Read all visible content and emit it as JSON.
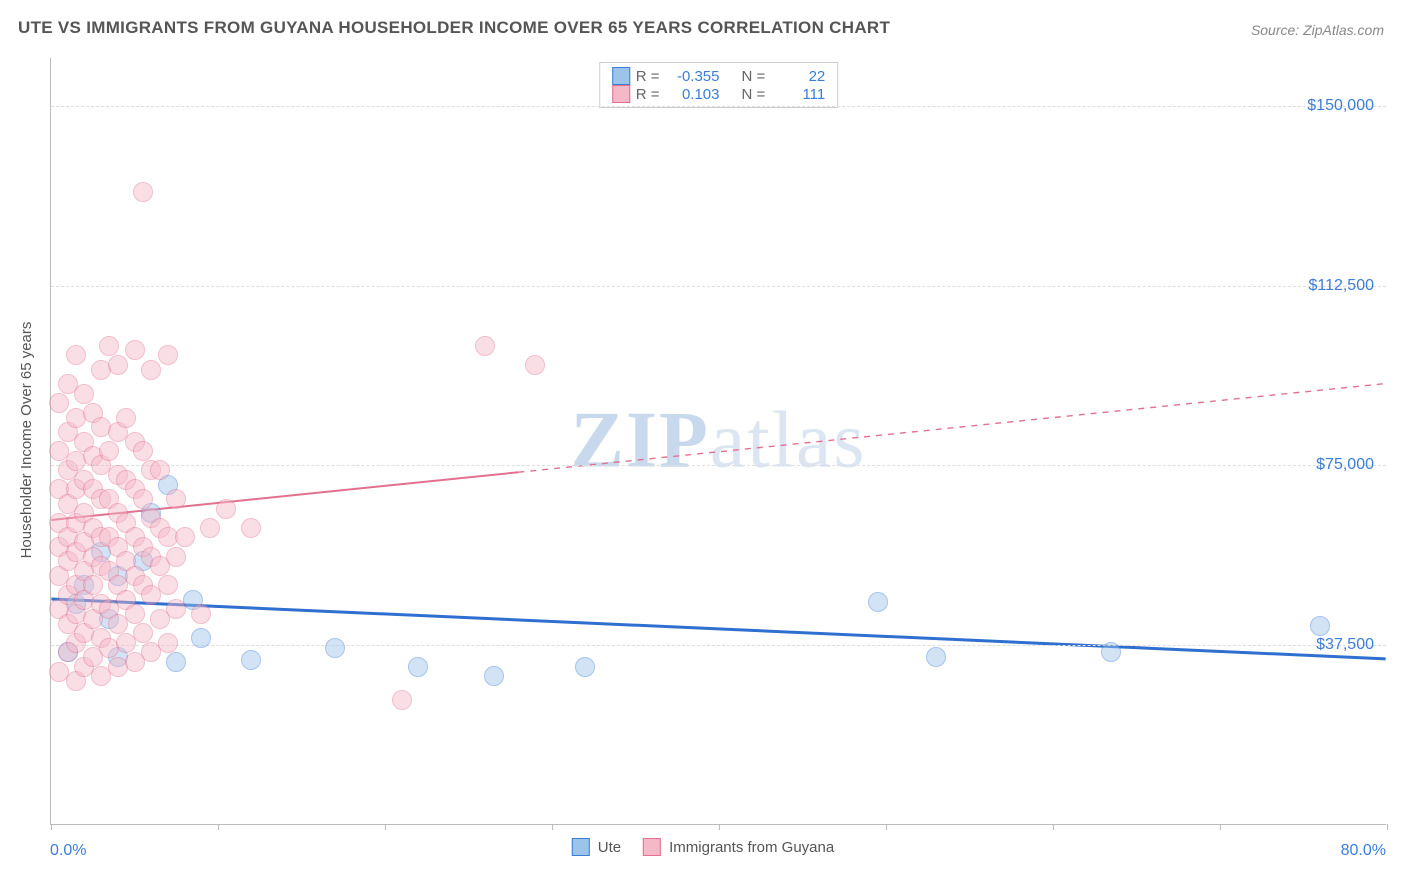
{
  "title": "UTE VS IMMIGRANTS FROM GUYANA HOUSEHOLDER INCOME OVER 65 YEARS CORRELATION CHART",
  "source": "Source: ZipAtlas.com",
  "watermark_a": "ZIP",
  "watermark_b": "atlas",
  "chart": {
    "type": "scatter",
    "background_color": "#ffffff",
    "grid_color": "#dddddd",
    "axis_color": "#bbbbbb",
    "ylabel": "Householder Income Over 65 years",
    "ylabel_fontsize": 15,
    "ylabel_color": "#555555",
    "xlim": [
      0,
      80
    ],
    "ylim": [
      0,
      160000
    ],
    "x_min_label": "0.0%",
    "x_max_label": "80.0%",
    "yticks": [
      {
        "v": 37500,
        "label": "$37,500"
      },
      {
        "v": 75000,
        "label": "$75,000"
      },
      {
        "v": 112500,
        "label": "$112,500"
      },
      {
        "v": 150000,
        "label": "$150,000"
      }
    ],
    "xtick_positions": [
      0,
      10,
      20,
      30,
      40,
      50,
      60,
      70,
      80
    ],
    "marker_radius": 10,
    "marker_opacity": 0.45,
    "series": [
      {
        "name": "Ute",
        "fill": "#9cc3ea",
        "stroke": "#3b7dd8",
        "trend_color": "#2e6fd0",
        "trend_width": 3,
        "trend_solid_until_x": 80,
        "trend": {
          "x1": 0,
          "y1": 47000,
          "x2": 80,
          "y2": 34500
        },
        "R_label": "R =",
        "R_value": "-0.355",
        "N_label": "N =",
        "N_value": "22",
        "points": [
          {
            "x": 1.0,
            "y": 36000
          },
          {
            "x": 1.5,
            "y": 46000
          },
          {
            "x": 3.0,
            "y": 57000
          },
          {
            "x": 4.0,
            "y": 52000
          },
          {
            "x": 4.0,
            "y": 35000
          },
          {
            "x": 5.5,
            "y": 55000
          },
          {
            "x": 7.0,
            "y": 71000
          },
          {
            "x": 7.5,
            "y": 34000
          },
          {
            "x": 8.5,
            "y": 47000
          },
          {
            "x": 12.0,
            "y": 34500
          },
          {
            "x": 17.0,
            "y": 37000
          },
          {
            "x": 22.0,
            "y": 33000
          },
          {
            "x": 26.5,
            "y": 31000
          },
          {
            "x": 32.0,
            "y": 33000
          },
          {
            "x": 49.5,
            "y": 46500
          },
          {
            "x": 53.0,
            "y": 35000
          },
          {
            "x": 63.5,
            "y": 36000
          },
          {
            "x": 76.0,
            "y": 41500
          },
          {
            "x": 6.0,
            "y": 65000
          },
          {
            "x": 2.0,
            "y": 50000
          },
          {
            "x": 3.5,
            "y": 43000
          },
          {
            "x": 9.0,
            "y": 39000
          }
        ]
      },
      {
        "name": "Immigrants from Guyana",
        "fill": "#f5b8c8",
        "stroke": "#e2708f",
        "trend_color": "#e2708f",
        "trend_width": 2,
        "trend_solid_until_x": 28,
        "trend": {
          "x1": 0,
          "y1": 63500,
          "x2": 80,
          "y2": 92000
        },
        "R_label": "R =",
        "R_value": "0.103",
        "N_label": "N =",
        "N_value": "111",
        "points": [
          {
            "x": 0.5,
            "y": 32000
          },
          {
            "x": 0.5,
            "y": 45000
          },
          {
            "x": 0.5,
            "y": 52000
          },
          {
            "x": 0.5,
            "y": 58000
          },
          {
            "x": 0.5,
            "y": 63000
          },
          {
            "x": 0.5,
            "y": 70000
          },
          {
            "x": 0.5,
            "y": 78000
          },
          {
            "x": 0.5,
            "y": 88000
          },
          {
            "x": 1.0,
            "y": 36000
          },
          {
            "x": 1.0,
            "y": 42000
          },
          {
            "x": 1.0,
            "y": 48000
          },
          {
            "x": 1.0,
            "y": 55000
          },
          {
            "x": 1.0,
            "y": 60000
          },
          {
            "x": 1.0,
            "y": 67000
          },
          {
            "x": 1.0,
            "y": 74000
          },
          {
            "x": 1.0,
            "y": 82000
          },
          {
            "x": 1.0,
            "y": 92000
          },
          {
            "x": 1.5,
            "y": 30000
          },
          {
            "x": 1.5,
            "y": 38000
          },
          {
            "x": 1.5,
            "y": 44000
          },
          {
            "x": 1.5,
            "y": 50000
          },
          {
            "x": 1.5,
            "y": 57000
          },
          {
            "x": 1.5,
            "y": 63000
          },
          {
            "x": 1.5,
            "y": 70000
          },
          {
            "x": 1.5,
            "y": 76000
          },
          {
            "x": 1.5,
            "y": 85000
          },
          {
            "x": 1.5,
            "y": 98000
          },
          {
            "x": 2.0,
            "y": 33000
          },
          {
            "x": 2.0,
            "y": 40000
          },
          {
            "x": 2.0,
            "y": 47000
          },
          {
            "x": 2.0,
            "y": 53000
          },
          {
            "x": 2.0,
            "y": 59000
          },
          {
            "x": 2.0,
            "y": 65000
          },
          {
            "x": 2.0,
            "y": 72000
          },
          {
            "x": 2.0,
            "y": 80000
          },
          {
            "x": 2.0,
            "y": 90000
          },
          {
            "x": 2.5,
            "y": 35000
          },
          {
            "x": 2.5,
            "y": 43000
          },
          {
            "x": 2.5,
            "y": 50000
          },
          {
            "x": 2.5,
            "y": 56000
          },
          {
            "x": 2.5,
            "y": 62000
          },
          {
            "x": 2.5,
            "y": 70000
          },
          {
            "x": 2.5,
            "y": 77000
          },
          {
            "x": 2.5,
            "y": 86000
          },
          {
            "x": 3.0,
            "y": 31000
          },
          {
            "x": 3.0,
            "y": 39000
          },
          {
            "x": 3.0,
            "y": 46000
          },
          {
            "x": 3.0,
            "y": 54000
          },
          {
            "x": 3.0,
            "y": 60000
          },
          {
            "x": 3.0,
            "y": 68000
          },
          {
            "x": 3.0,
            "y": 75000
          },
          {
            "x": 3.0,
            "y": 83000
          },
          {
            "x": 3.0,
            "y": 95000
          },
          {
            "x": 3.5,
            "y": 37000
          },
          {
            "x": 3.5,
            "y": 45000
          },
          {
            "x": 3.5,
            "y": 53000
          },
          {
            "x": 3.5,
            "y": 60000
          },
          {
            "x": 3.5,
            "y": 68000
          },
          {
            "x": 3.5,
            "y": 78000
          },
          {
            "x": 3.5,
            "y": 100000
          },
          {
            "x": 4.0,
            "y": 33000
          },
          {
            "x": 4.0,
            "y": 42000
          },
          {
            "x": 4.0,
            "y": 50000
          },
          {
            "x": 4.0,
            "y": 58000
          },
          {
            "x": 4.0,
            "y": 65000
          },
          {
            "x": 4.0,
            "y": 73000
          },
          {
            "x": 4.0,
            "y": 82000
          },
          {
            "x": 4.0,
            "y": 96000
          },
          {
            "x": 4.5,
            "y": 38000
          },
          {
            "x": 4.5,
            "y": 47000
          },
          {
            "x": 4.5,
            "y": 55000
          },
          {
            "x": 4.5,
            "y": 63000
          },
          {
            "x": 4.5,
            "y": 72000
          },
          {
            "x": 4.5,
            "y": 85000
          },
          {
            "x": 5.0,
            "y": 34000
          },
          {
            "x": 5.0,
            "y": 44000
          },
          {
            "x": 5.0,
            "y": 52000
          },
          {
            "x": 5.0,
            "y": 60000
          },
          {
            "x": 5.0,
            "y": 70000
          },
          {
            "x": 5.0,
            "y": 80000
          },
          {
            "x": 5.0,
            "y": 99000
          },
          {
            "x": 5.5,
            "y": 40000
          },
          {
            "x": 5.5,
            "y": 50000
          },
          {
            "x": 5.5,
            "y": 58000
          },
          {
            "x": 5.5,
            "y": 68000
          },
          {
            "x": 5.5,
            "y": 78000
          },
          {
            "x": 6.0,
            "y": 36000
          },
          {
            "x": 6.0,
            "y": 48000
          },
          {
            "x": 6.0,
            "y": 56000
          },
          {
            "x": 6.0,
            "y": 64000
          },
          {
            "x": 6.0,
            "y": 74000
          },
          {
            "x": 6.0,
            "y": 95000
          },
          {
            "x": 6.5,
            "y": 43000
          },
          {
            "x": 6.5,
            "y": 54000
          },
          {
            "x": 6.5,
            "y": 62000
          },
          {
            "x": 6.5,
            "y": 74000
          },
          {
            "x": 7.0,
            "y": 38000
          },
          {
            "x": 7.0,
            "y": 50000
          },
          {
            "x": 7.0,
            "y": 60000
          },
          {
            "x": 7.0,
            "y": 98000
          },
          {
            "x": 7.5,
            "y": 45000
          },
          {
            "x": 7.5,
            "y": 56000
          },
          {
            "x": 7.5,
            "y": 68000
          },
          {
            "x": 8.0,
            "y": 60000
          },
          {
            "x": 9.0,
            "y": 44000
          },
          {
            "x": 9.5,
            "y": 62000
          },
          {
            "x": 10.5,
            "y": 66000
          },
          {
            "x": 12.0,
            "y": 62000
          },
          {
            "x": 5.5,
            "y": 132000
          },
          {
            "x": 21.0,
            "y": 26000
          },
          {
            "x": 26.0,
            "y": 100000
          },
          {
            "x": 29.0,
            "y": 96000
          }
        ]
      }
    ]
  },
  "legend_bottom": [
    {
      "label": "Ute",
      "fill": "#9cc3ea",
      "stroke": "#3b7dd8"
    },
    {
      "label": "Immigrants from Guyana",
      "fill": "#f5b8c8",
      "stroke": "#e2708f"
    }
  ]
}
